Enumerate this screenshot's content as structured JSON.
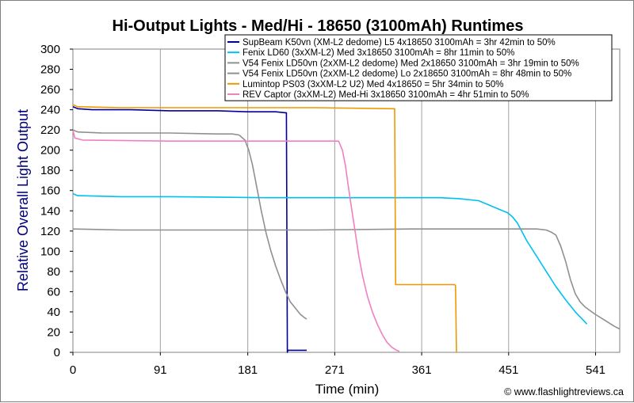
{
  "chart_data": {
    "type": "line",
    "title": "Hi-Output Lights - Med/Hi - 18650 (3100mAh) Runtimes",
    "xlabel": "Time (min)",
    "ylabel": "Relative Overall Light Output",
    "credit": "© www.flashlightreviews.ca",
    "xlim": [
      0,
      566
    ],
    "ylim": [
      0,
      300
    ],
    "x_ticks": [
      "0",
      "91",
      "181",
      "271",
      "361",
      "451",
      "541"
    ],
    "x_tick_values": [
      0,
      90.5,
      181,
      271,
      361,
      451,
      541
    ],
    "y_ticks": [
      "0",
      "20",
      "40",
      "60",
      "80",
      "100",
      "120",
      "140",
      "160",
      "180",
      "200",
      "220",
      "240",
      "260",
      "280",
      "300"
    ],
    "y_tick_values": [
      0,
      20,
      40,
      60,
      80,
      100,
      120,
      140,
      160,
      180,
      200,
      220,
      240,
      260,
      280,
      300
    ],
    "grid": {
      "vertical": true,
      "horizontal": false
    },
    "legend_position": "top-right",
    "series": [
      {
        "name": "SupBeam K50vn (XM-L2 dedome) L5 4x18650 3100mAh = 3hr 42min to 50%",
        "color": "#000099",
        "points": [
          [
            0,
            243
          ],
          [
            5,
            241
          ],
          [
            20,
            240
          ],
          [
            60,
            240
          ],
          [
            100,
            239
          ],
          [
            150,
            239
          ],
          [
            180,
            238
          ],
          [
            210,
            238
          ],
          [
            220,
            237
          ],
          [
            221,
            237
          ],
          [
            222,
            0
          ],
          [
            222.5,
            2
          ],
          [
            230,
            2
          ],
          [
            242,
            2
          ]
        ]
      },
      {
        "name": "Fenix LD60 (3xXM-L2) Med 3x18650 3100mAh = 8hr 11min to 50%",
        "color": "#00c0f0",
        "points": [
          [
            0,
            157
          ],
          [
            5,
            155
          ],
          [
            50,
            154
          ],
          [
            100,
            154
          ],
          [
            200,
            153
          ],
          [
            300,
            153
          ],
          [
            380,
            153
          ],
          [
            400,
            152
          ],
          [
            420,
            150
          ],
          [
            430,
            146
          ],
          [
            440,
            142
          ],
          [
            450,
            138
          ],
          [
            455,
            134
          ],
          [
            460,
            128
          ],
          [
            470,
            110
          ],
          [
            480,
            95
          ],
          [
            490,
            80
          ],
          [
            500,
            65
          ],
          [
            510,
            52
          ],
          [
            520,
            40
          ],
          [
            528,
            32
          ],
          [
            532,
            28
          ]
        ]
      },
      {
        "name": "V54 Fenix LD50vn (2xXM-L2 dedome) Med 2x18650 3100mAh = 3hr 19min to 50%",
        "color": "#909090",
        "points": [
          [
            0,
            220
          ],
          [
            5,
            218
          ],
          [
            30,
            217
          ],
          [
            100,
            217
          ],
          [
            150,
            216
          ],
          [
            165,
            216
          ],
          [
            172,
            215
          ],
          [
            178,
            210
          ],
          [
            182,
            200
          ],
          [
            186,
            185
          ],
          [
            190,
            165
          ],
          [
            195,
            140
          ],
          [
            200,
            118
          ],
          [
            205,
            100
          ],
          [
            210,
            85
          ],
          [
            215,
            72
          ],
          [
            220,
            60
          ],
          [
            225,
            50
          ],
          [
            230,
            44
          ],
          [
            235,
            38
          ],
          [
            240,
            34
          ],
          [
            242,
            33
          ]
        ]
      },
      {
        "name": "V54 Fenix LD50vn (2xXM-L2 dedome) Lo 2x18650 3100mAh = 8hr 48min to 50%",
        "color": "#909090",
        "points": [
          [
            0,
            122
          ],
          [
            50,
            121
          ],
          [
            150,
            121
          ],
          [
            250,
            121
          ],
          [
            350,
            122
          ],
          [
            450,
            122
          ],
          [
            480,
            122
          ],
          [
            490,
            121
          ],
          [
            495,
            119
          ],
          [
            500,
            116
          ],
          [
            505,
            105
          ],
          [
            510,
            90
          ],
          [
            515,
            72
          ],
          [
            520,
            58
          ],
          [
            525,
            50
          ],
          [
            530,
            45
          ],
          [
            540,
            38
          ],
          [
            550,
            32
          ],
          [
            560,
            26
          ],
          [
            566,
            23
          ]
        ]
      },
      {
        "name": "Lumintop PS03 (3xXM-L2 U2) Med 4x18650 = 5hr 34min to 50%",
        "color": "#f09800",
        "points": [
          [
            0,
            245
          ],
          [
            5,
            243
          ],
          [
            50,
            242
          ],
          [
            150,
            242
          ],
          [
            250,
            242
          ],
          [
            330,
            241
          ],
          [
            333,
            241
          ],
          [
            334,
            67
          ],
          [
            360,
            67
          ],
          [
            395,
            67
          ],
          [
            396,
            66
          ],
          [
            397,
            0
          ]
        ]
      },
      {
        "name": "REV Captor (3xXM-L2) Med-Hi 3x18650 3100mAh = 4hr 51min to 50%",
        "color": "#f080c0",
        "points": [
          [
            0,
            220
          ],
          [
            2,
            212
          ],
          [
            10,
            210
          ],
          [
            100,
            209
          ],
          [
            200,
            209
          ],
          [
            270,
            209
          ],
          [
            275,
            209
          ],
          [
            279,
            200
          ],
          [
            282,
            185
          ],
          [
            285,
            165
          ],
          [
            288,
            145
          ],
          [
            292,
            120
          ],
          [
            296,
            95
          ],
          [
            300,
            75
          ],
          [
            305,
            55
          ],
          [
            310,
            40
          ],
          [
            315,
            28
          ],
          [
            320,
            18
          ],
          [
            325,
            10
          ],
          [
            330,
            5
          ],
          [
            335,
            2
          ],
          [
            338,
            1
          ]
        ]
      }
    ]
  }
}
